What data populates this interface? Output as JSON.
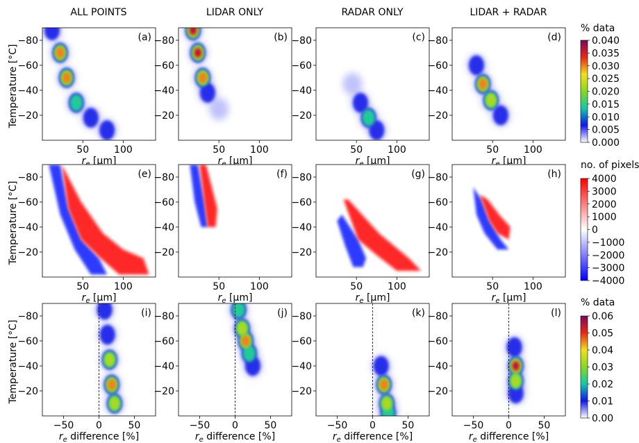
{
  "column_titles": [
    "ALL POINTS",
    "LIDAR ONLY",
    "RADAR ONLY",
    "LIDAR + RADAR"
  ],
  "row1": {
    "panel_labels": [
      "(a)",
      "(b)",
      "(c)",
      "(d)"
    ],
    "ylabel": "Temperature [°C]",
    "xlabel": "r_e [μm]",
    "xticks": [
      "50",
      "100"
    ],
    "yticks": [
      "-80",
      "-60",
      "-40",
      "-20"
    ],
    "colorbar": {
      "title": "% data",
      "ticks": [
        "0.040",
        "0.035",
        "0.030",
        "0.025",
        "0.020",
        "0.015",
        "0.010",
        "0.005",
        "0.000"
      ]
    }
  },
  "row2": {
    "panel_labels": [
      "(e)",
      "(f)",
      "(g)",
      "(h)"
    ],
    "ylabel": "Temperature [°C]",
    "xlabel": "r_e [μm]",
    "xticks": [
      "50",
      "100"
    ],
    "yticks": [
      "-80",
      "-60",
      "-40",
      "-20"
    ],
    "colorbar": {
      "title": "no. of pixels",
      "ticks": [
        "4000",
        "3000",
        "2000",
        "1000",
        "0",
        "−1000",
        "−2000",
        "−3000",
        "−4000"
      ]
    }
  },
  "row3": {
    "panel_labels": [
      "(i)",
      "(j)",
      "(k)",
      "(l)"
    ],
    "ylabel": "Temperature [°C]",
    "xlabel": "r_e difference [%]",
    "xticks": [
      "−50",
      "0",
      "50"
    ],
    "yticks": [
      "-80",
      "-60",
      "-40",
      "-20"
    ],
    "colorbar": {
      "title": "% data",
      "ticks": [
        "0.06",
        "0.05",
        "0.04",
        "0.03",
        "0.02",
        "0.01",
        "0.00"
      ]
    }
  },
  "chart_data": [
    {
      "type": "heatmap",
      "row": 1,
      "x_range_um": [
        0,
        140
      ],
      "y_range_C": [
        -90,
        0
      ],
      "y_inverted": true,
      "colorbar_range": [
        0.0,
        0.04
      ],
      "colormap": [
        "#ffffff",
        "#1018e8",
        "#14c8a8",
        "#88d820",
        "#f0e020",
        "#e82818",
        "#7a0a5a"
      ],
      "panels": [
        {
          "label": "(a)",
          "subset": "ALL POINTS",
          "ridge": [
            [
              12,
              -88,
              0.01
            ],
            [
              22,
              -70,
              0.03
            ],
            [
              30,
              -50,
              0.034
            ],
            [
              42,
              -30,
              0.014
            ],
            [
              60,
              -18,
              0.008
            ],
            [
              80,
              -8,
              0.006
            ]
          ]
        },
        {
          "label": "(b)",
          "subset": "LIDAR ONLY",
          "ridge": [
            [
              18,
              -88,
              0.038
            ],
            [
              24,
              -70,
              0.04
            ],
            [
              30,
              -50,
              0.036
            ],
            [
              36,
              -38,
              0.01
            ],
            [
              50,
              -25,
              0.003
            ]
          ]
        },
        {
          "label": "(c)",
          "subset": "RADAR ONLY",
          "ridge": [
            [
              45,
              -45,
              0.004
            ],
            [
              55,
              -30,
              0.012
            ],
            [
              65,
              -18,
              0.018
            ],
            [
              75,
              -8,
              0.01
            ]
          ]
        },
        {
          "label": "(d)",
          "subset": "LIDAR + RADAR",
          "ridge": [
            [
              30,
              -60,
              0.012
            ],
            [
              38,
              -45,
              0.036
            ],
            [
              48,
              -32,
              0.026
            ],
            [
              60,
              -20,
              0.006
            ]
          ]
        }
      ]
    },
    {
      "type": "heatmap",
      "row": 2,
      "x_range_um": [
        0,
        140
      ],
      "y_range_C": [
        -90,
        0
      ],
      "y_inverted": true,
      "colorbar_range": [
        -4000,
        4000
      ],
      "colormap": [
        "#0000ff",
        "#ffffff",
        "#ff0000"
      ],
      "panels": [
        {
          "label": "(e)",
          "subset": "ALL POINTS",
          "negative_band": "narrow band left of diagonal",
          "positive_band": "wide band right of diagonal"
        },
        {
          "label": "(f)",
          "subset": "LIDAR ONLY",
          "negative_band": "left of diagonal, -90 to -40",
          "positive_band": "right of diagonal, -90 to -40"
        },
        {
          "label": "(g)",
          "subset": "RADAR ONLY",
          "negative_band": "left of diagonal, -55 to -10",
          "positive_band": "right of diagonal, -60 to -5"
        },
        {
          "label": "(h)",
          "subset": "LIDAR + RADAR",
          "negative_band": "left of diagonal, -65 to -20",
          "positive_band": "right of diagonal, -60 to -30"
        }
      ]
    },
    {
      "type": "heatmap",
      "row": 3,
      "x_range_pct": [
        -80,
        80
      ],
      "y_range_C": [
        -90,
        0
      ],
      "y_inverted": true,
      "colorbar_range": [
        0.0,
        0.06
      ],
      "colormap": [
        "#ffffff",
        "#1018e8",
        "#14c8a8",
        "#88d820",
        "#f0e020",
        "#e82818",
        "#7a0a5a"
      ],
      "panels": [
        {
          "label": "(i)",
          "subset": "ALL POINTS",
          "ridge": [
            [
              8,
              -85,
              0.01
            ],
            [
              12,
              -65,
              0.02
            ],
            [
              15,
              -45,
              0.04
            ],
            [
              18,
              -25,
              0.048
            ],
            [
              22,
              -10,
              0.04
            ]
          ]
        },
        {
          "label": "(j)",
          "subset": "LIDAR ONLY",
          "ridge": [
            [
              5,
              -85,
              0.03
            ],
            [
              10,
              -70,
              0.04
            ],
            [
              15,
              -60,
              0.05
            ],
            [
              20,
              -50,
              0.03
            ],
            [
              25,
              -40,
              0.01
            ]
          ]
        },
        {
          "label": "(k)",
          "subset": "RADAR ONLY",
          "ridge": [
            [
              12,
              -40,
              0.012
            ],
            [
              16,
              -25,
              0.05
            ],
            [
              20,
              -10,
              0.04
            ],
            [
              22,
              -2,
              0.03
            ]
          ]
        },
        {
          "label": "(l)",
          "subset": "LIDAR + RADAR",
          "ridge": [
            [
              8,
              -55,
              0.01
            ],
            [
              10,
              -40,
              0.056
            ],
            [
              10,
              -28,
              0.04
            ],
            [
              10,
              -18,
              0.01
            ]
          ]
        }
      ]
    }
  ]
}
